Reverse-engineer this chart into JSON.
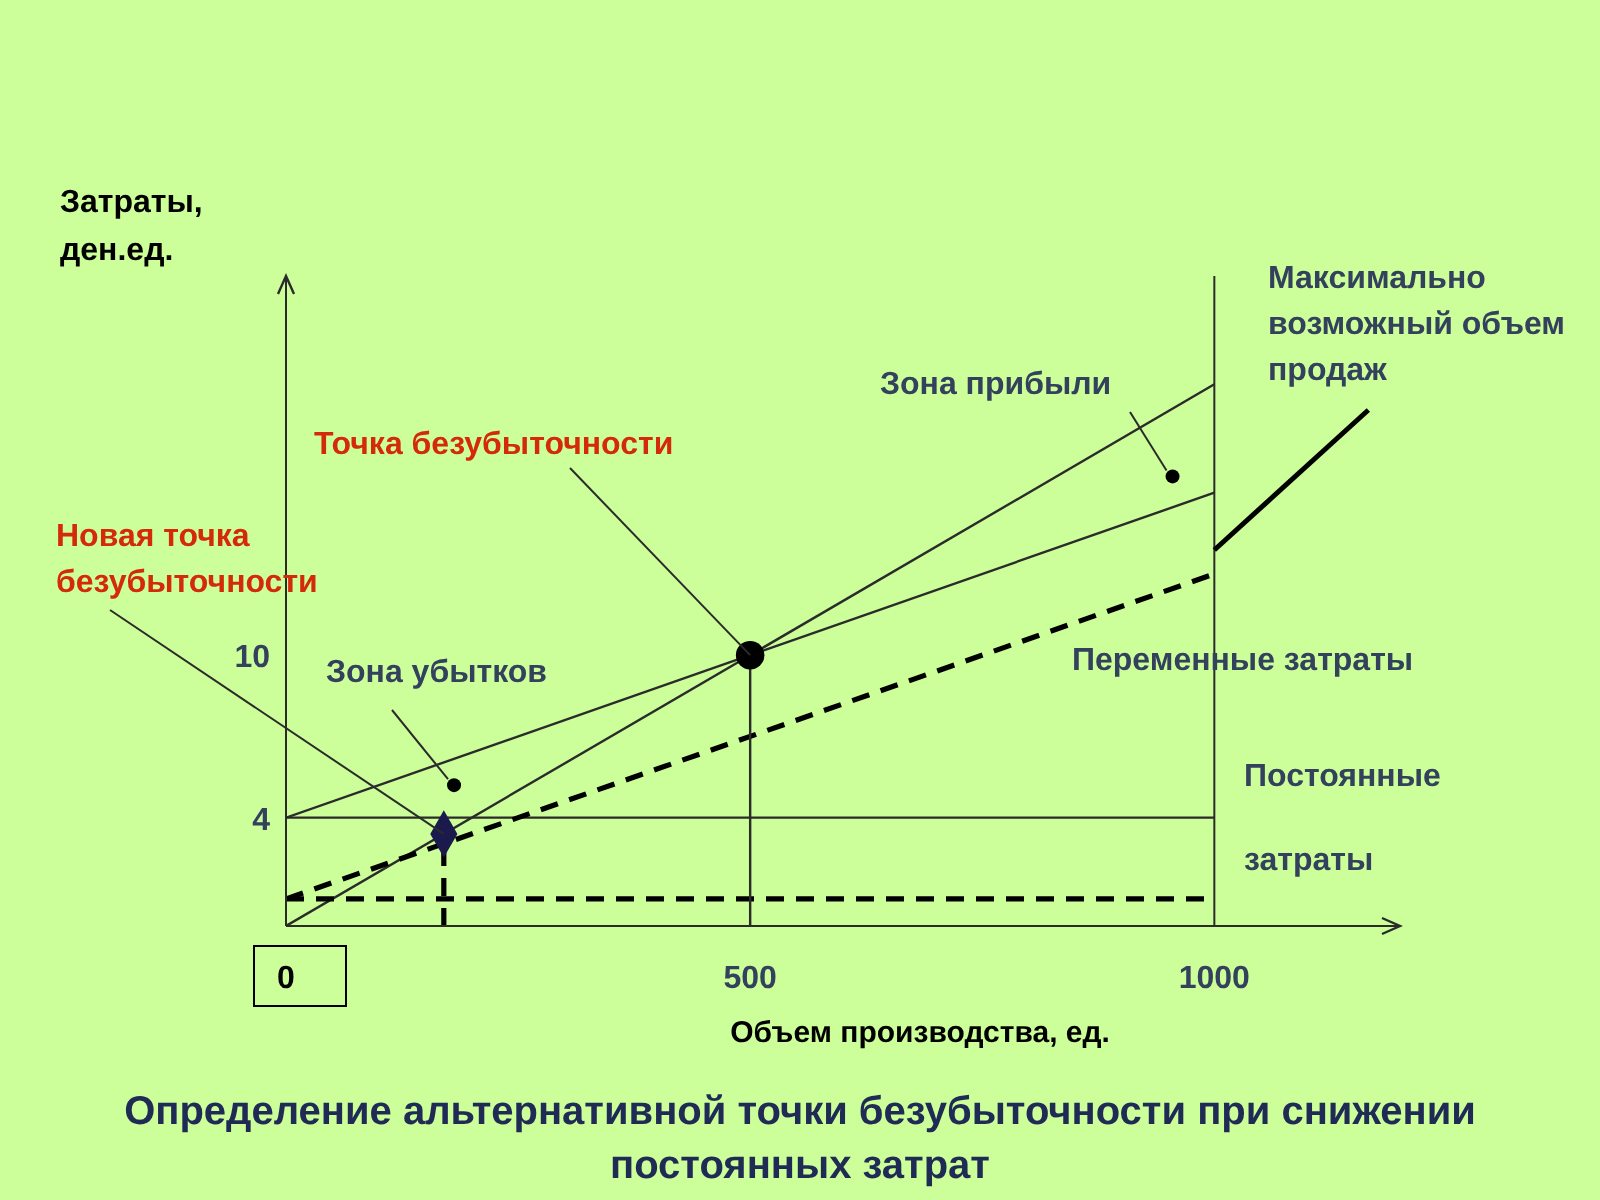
{
  "chart_data": {
    "type": "line",
    "title": "Определение альтернативной точки безубыточности при снижении постоянных затрат",
    "xlabel": "Объем производства, ед.",
    "ylabel": "Затраты, ден.ед.",
    "xlim": [
      0,
      1200
    ],
    "xticks": [
      0,
      500,
      1000
    ],
    "ylim": [
      0,
      24
    ],
    "yticks": [
      4,
      10
    ],
    "grid": false,
    "marker": "none",
    "series": [
      {
        "x": [
          0,
          1000
        ],
        "values": [
          0,
          20
        ],
        "color": "#2b2b2b"
      },
      {
        "x": [
          0,
          1000
        ],
        "values": [
          4,
          16
        ],
        "color": "#2b2b2b"
      },
      {
        "x": [
          0,
          1000
        ],
        "values": [
          4,
          4
        ],
        "color": "#2b2b2b"
      },
      {
        "x": [
          0,
          1000
        ],
        "values": [
          1,
          13
        ],
        "color": "#000000",
        "line_style": "dashed"
      },
      {
        "x": [
          0,
          1000
        ],
        "values": [
          1,
          1
        ],
        "color": "#000000",
        "line_style": "dashed"
      },
      {
        "x": [
          500,
          500
        ],
        "values": [
          0,
          10
        ],
        "color": "#2b2b2b"
      },
      {
        "x": [
          170,
          170
        ],
        "values": [
          0,
          3.4
        ],
        "color": "#000000",
        "line_style": "dashed"
      },
      {
        "type": "scatter",
        "x": [
          500
        ],
        "values": [
          10
        ],
        "color": "#000000",
        "marker": "circle"
      },
      {
        "type": "scatter",
        "x": [
          170
        ],
        "values": [
          3.4
        ],
        "color": "#1a1a4d",
        "marker": "diamond"
      }
    ],
    "ref_lines": [
      {
        "axis": "x",
        "value": 1000,
        "label": "Максимально возможный объем продаж",
        "color": "#2b2b2b"
      }
    ],
    "annotations": [
      {
        "text": "Точка безубыточности",
        "x": 500,
        "y": 10
      },
      {
        "text": "Новая точка безубыточности",
        "x": 170,
        "y": 3.4
      },
      {
        "text": "Зона прибыли",
        "x": 955,
        "y": 16.6
      },
      {
        "text": "Зона убытков",
        "x": 181,
        "y": 5.2
      },
      "Переменные затраты",
      "Постоянные затраты"
    ]
  }
}
